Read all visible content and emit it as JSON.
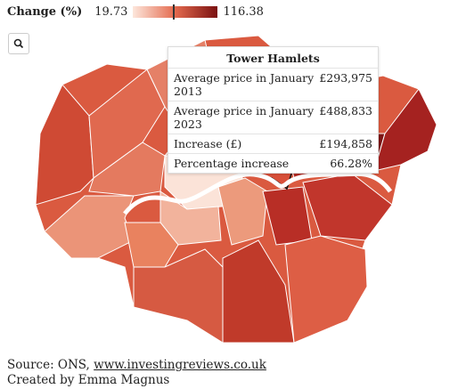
{
  "legend": {
    "title": "Change (%)",
    "min": 19.73,
    "max": 116.38
  },
  "tooltip": {
    "title": "Tower Hamlets",
    "rows": [
      {
        "label": "Average price in January 2013",
        "value": "£293,975"
      },
      {
        "label": "Average price in January 2023",
        "value": "£488,833"
      },
      {
        "label": "Increase (£)",
        "value": "£194,858"
      },
      {
        "label": "Percentage increase",
        "value": 66.28,
        "value_label": "66.28%"
      }
    ]
  },
  "footer": {
    "source": "Source: ONS,",
    "link": "www.investingreviews.co.uk",
    "credit": "Created by Emma Magnus"
  }
}
